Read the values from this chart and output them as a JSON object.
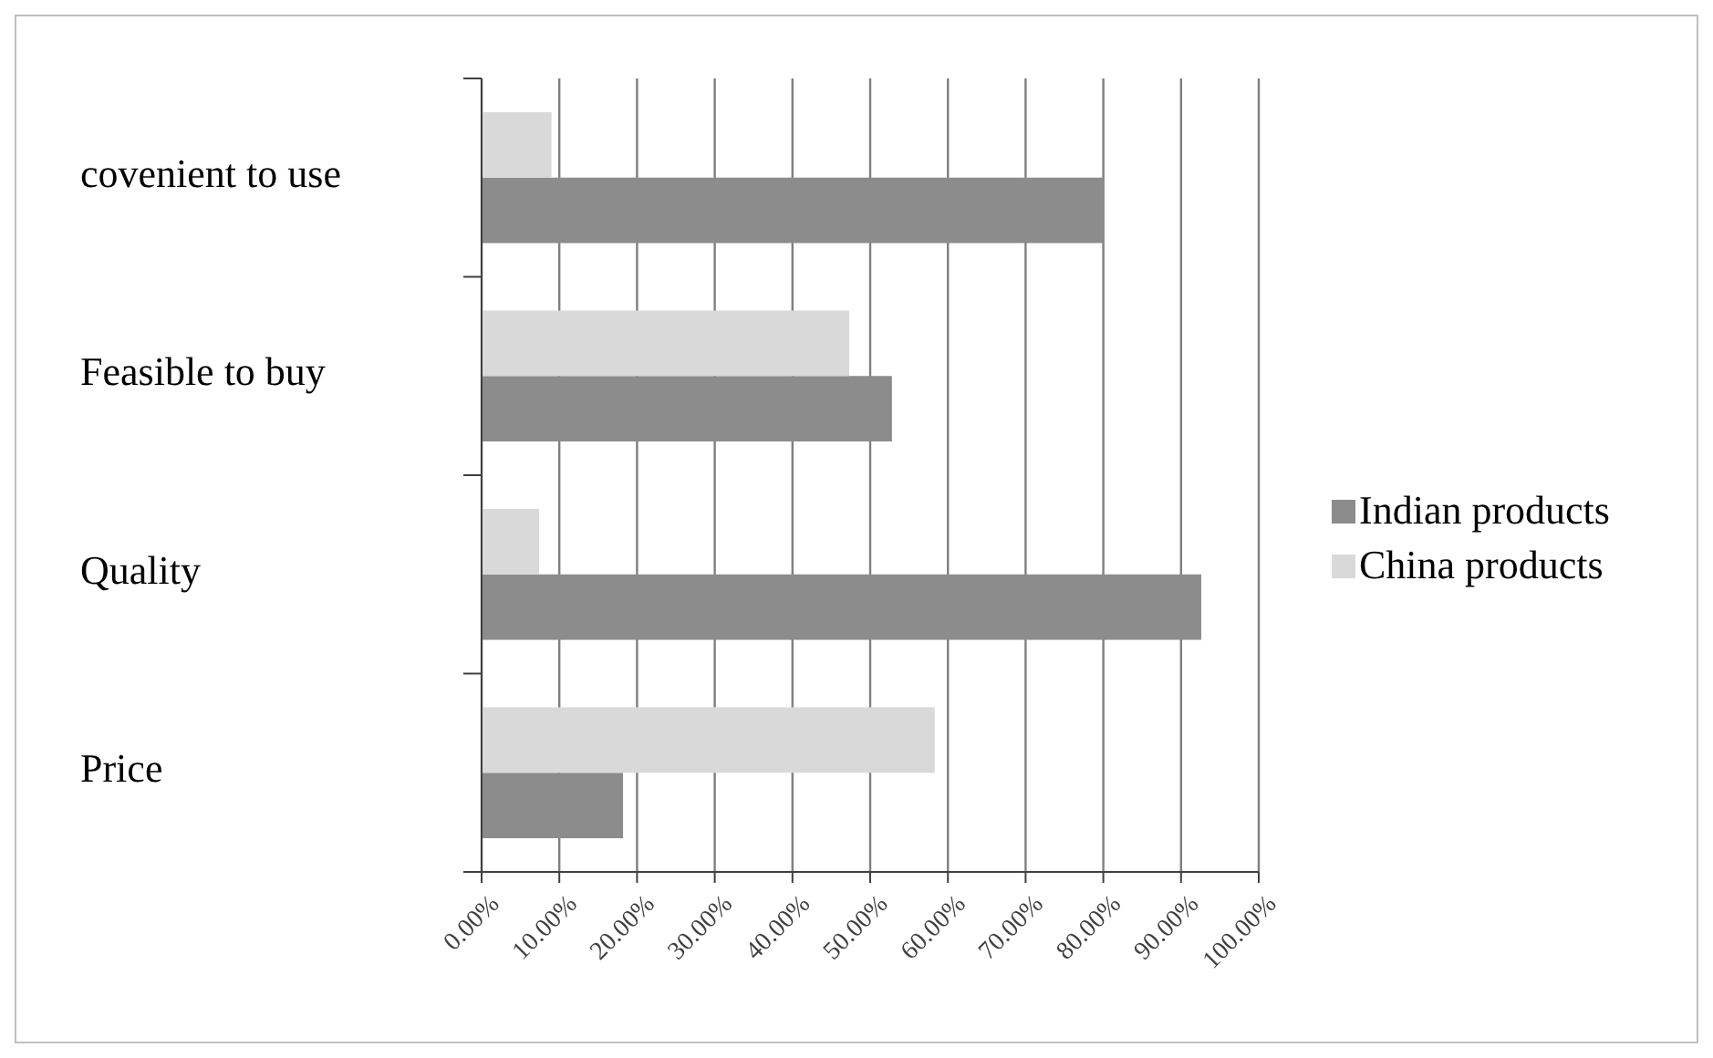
{
  "chart_data": {
    "type": "bar",
    "orientation": "horizontal",
    "categories": [
      "covenient to use",
      "Feasible to buy",
      "Quality",
      "Price"
    ],
    "series": [
      {
        "name": "Indian products",
        "color": "#8c8c8c",
        "values": [
          80.0,
          52.8,
          92.6,
          18.2
        ]
      },
      {
        "name": "China products",
        "color": "#d9d9d9",
        "values": [
          9.0,
          47.3,
          7.4,
          58.3
        ]
      }
    ],
    "xlim": [
      0,
      100
    ],
    "xticks": [
      {
        "value": 0,
        "label": "0.00%"
      },
      {
        "value": 10,
        "label": "10.00%"
      },
      {
        "value": 20,
        "label": "20.00%"
      },
      {
        "value": 30,
        "label": "30.00%"
      },
      {
        "value": 40,
        "label": "40.00%"
      },
      {
        "value": 50,
        "label": "50.00%"
      },
      {
        "value": 60,
        "label": "60.00%"
      },
      {
        "value": 70,
        "label": "70.00%"
      },
      {
        "value": 80,
        "label": "80.00%"
      },
      {
        "value": 90,
        "label": "90.00%"
      },
      {
        "value": 100,
        "label": "100.00%"
      }
    ],
    "grid": "x",
    "legend": "right"
  }
}
